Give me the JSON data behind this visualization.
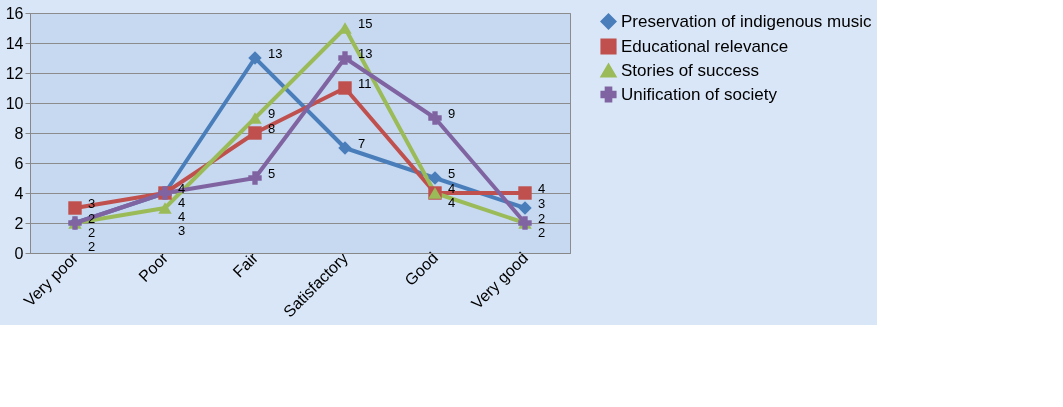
{
  "chart_data": {
    "type": "line",
    "categories": [
      "Very poor",
      "Poor",
      "Fair",
      "Satisfactory",
      "Good",
      "Very good"
    ],
    "series": [
      {
        "name": "Preservation of indigenous music",
        "color": "#4a7ebb",
        "marker": "diamond",
        "values": [
          2,
          4,
          13,
          7,
          5,
          3
        ]
      },
      {
        "name": "Educational relevance",
        "color": "#c0504d",
        "marker": "square",
        "values": [
          3,
          4,
          8,
          11,
          4,
          4
        ]
      },
      {
        "name": "Stories of success",
        "color": "#9bbb59",
        "marker": "triangle",
        "values": [
          2,
          3,
          9,
          15,
          4,
          2
        ]
      },
      {
        "name": "Unification of society",
        "color": "#8064a2",
        "marker": "cross",
        "values": [
          2,
          4,
          5,
          13,
          9,
          2
        ]
      }
    ],
    "ylim": [
      0,
      16
    ],
    "yticks": [
      0,
      2,
      4,
      6,
      8,
      10,
      12,
      14,
      16
    ],
    "grid": "y",
    "legend": "right",
    "data_labels": true
  }
}
